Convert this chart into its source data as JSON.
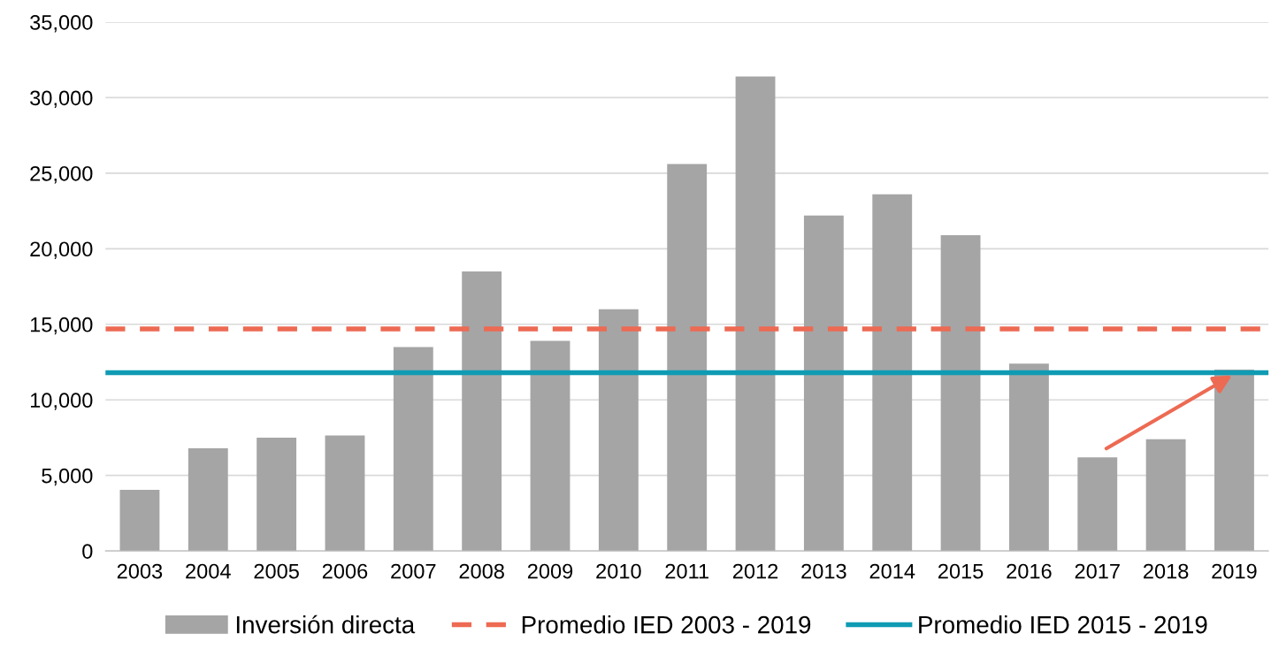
{
  "chart_data": {
    "type": "bar",
    "categories": [
      "2003",
      "2004",
      "2005",
      "2006",
      "2007",
      "2008",
      "2009",
      "2010",
      "2011",
      "2012",
      "2013",
      "2014",
      "2015",
      "2016",
      "2017",
      "2018",
      "2019"
    ],
    "series": [
      {
        "name": "Inversión directa",
        "color": "#a5a5a5",
        "values": [
          4050,
          6800,
          7500,
          7650,
          13500,
          18500,
          13900,
          16000,
          25600,
          31400,
          22200,
          23600,
          20900,
          12400,
          6200,
          7400,
          12000
        ]
      }
    ],
    "ylim": [
      0,
      35000
    ],
    "yticks": [
      0,
      {
        "value": 5000,
        "label": "5,000"
      },
      {
        "value": 10000,
        "label": "10,000"
      },
      {
        "value": 15000,
        "label": "15,000"
      },
      {
        "value": 20000,
        "label": "20,000"
      },
      {
        "value": 25000,
        "label": "25,000"
      },
      {
        "value": 30000,
        "label": "30,000"
      },
      {
        "value": 35000,
        "label": "35,000"
      }
    ],
    "ref_lines": [
      {
        "axis": "y",
        "value": 14700,
        "label": "Promedio IED 2003 - 2019",
        "color": "#ed6a53",
        "line_style": "dashed"
      },
      {
        "axis": "y",
        "value": 11800,
        "label": "Promedio IED 2015 - 2019",
        "color": "#0f9bb3",
        "line_style": "solid"
      }
    ],
    "grid": "y",
    "legend": "bottom"
  }
}
